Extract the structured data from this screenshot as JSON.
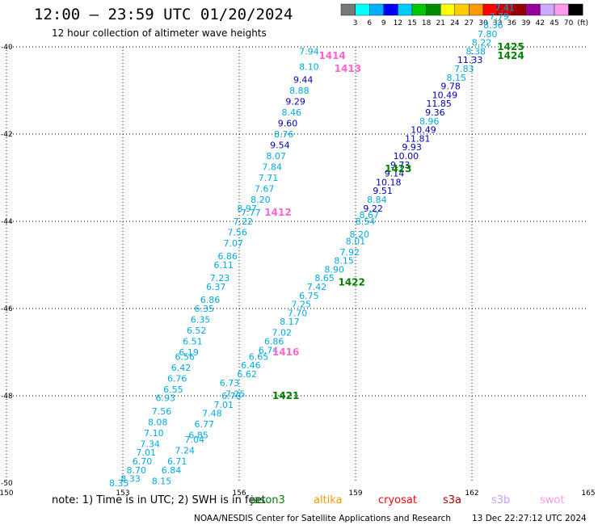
{
  "chart_data": {
    "type": "scatter",
    "title": "12:00 – 23:59 UTC 01/20/2024",
    "subtitle": "12 hour collection of altimeter wave heights",
    "xlim": [
      150,
      165
    ],
    "ylim": [
      -50,
      -40
    ],
    "x_ticks": [
      "150",
      "153",
      "156",
      "159",
      "162",
      "165"
    ],
    "y_ticks": [
      "-40",
      "-42",
      "-44",
      "-46",
      "-48",
      "-50"
    ],
    "grid": true,
    "colorbar": {
      "labels": [
        "3",
        "6",
        "9",
        "12",
        "15",
        "18",
        "21",
        "24",
        "27",
        "30",
        "33",
        "36",
        "39",
        "42",
        "45",
        "70",
        "(ft)"
      ],
      "colors": [
        "#777777",
        "#00ffff",
        "#00b0ff",
        "#0000ff",
        "#00ccff",
        "#00c800",
        "#008c00",
        "#ffff00",
        "#ffcc00",
        "#ff9900",
        "#ff0000",
        "#cc0000",
        "#990000",
        "#990099",
        "#ccaaff",
        "#ff99ee",
        "#000000"
      ]
    },
    "series": [
      {
        "track": "1412",
        "x": 157.0,
        "y": -43.8,
        "color": "#ff66cc"
      },
      {
        "track": "1413",
        "x": 158.8,
        "y": -40.5,
        "color": "#ff66cc"
      },
      {
        "track": "1414",
        "x": 158.4,
        "y": -40.2,
        "color": "#ff66cc"
      },
      {
        "track": "1416",
        "x": 157.2,
        "y": -47.0,
        "color": "#ff66cc"
      },
      {
        "track": "1421",
        "x": 157.2,
        "y": -48.0,
        "color": "#008000"
      },
      {
        "track": "1422",
        "x": 158.9,
        "y": -45.4,
        "color": "#008000"
      },
      {
        "track": "1423",
        "x": 160.1,
        "y": -42.8,
        "color": "#008000"
      },
      {
        "track": "1424",
        "x": 163.0,
        "y": -40.2,
        "color": "#008000"
      },
      {
        "track": "1425",
        "x": 163.0,
        "y": -40.0,
        "color": "#008000"
      }
    ],
    "points": [
      {
        "x": 156.2,
        "y": -43.7,
        "v": "8.97",
        "c": "#00aadd"
      },
      {
        "x": 156.3,
        "y": -43.8,
        "v": "7.77",
        "c": "#00aadd"
      },
      {
        "x": 156.1,
        "y": -44.0,
        "v": "7.22",
        "c": "#00aadd"
      },
      {
        "x": 155.95,
        "y": -44.25,
        "v": "7.56",
        "c": "#00aadd"
      },
      {
        "x": 155.85,
        "y": -44.5,
        "v": "7.07",
        "c": "#00aadd"
      },
      {
        "x": 155.7,
        "y": -44.8,
        "v": "6.86",
        "c": "#00aadd"
      },
      {
        "x": 155.6,
        "y": -45.0,
        "v": "6.11",
        "c": "#00aadd"
      },
      {
        "x": 155.5,
        "y": -45.3,
        "v": "7.23",
        "c": "#00aadd"
      },
      {
        "x": 155.4,
        "y": -45.5,
        "v": "6.37",
        "c": "#00aadd"
      },
      {
        "x": 155.25,
        "y": -45.8,
        "v": "6.86",
        "c": "#00aadd"
      },
      {
        "x": 155.1,
        "y": -46.0,
        "v": "6.35",
        "c": "#00aadd"
      },
      {
        "x": 155.0,
        "y": -46.25,
        "v": "6.35",
        "c": "#00aadd"
      },
      {
        "x": 154.9,
        "y": -46.5,
        "v": "6.52",
        "c": "#00aadd"
      },
      {
        "x": 154.8,
        "y": -46.75,
        "v": "6.51",
        "c": "#00aadd"
      },
      {
        "x": 154.7,
        "y": -47.0,
        "v": "6.19",
        "c": "#00aadd"
      },
      {
        "x": 154.6,
        "y": -47.1,
        "v": "6.56",
        "c": "#00aadd"
      },
      {
        "x": 154.5,
        "y": -47.35,
        "v": "6.42",
        "c": "#00aadd"
      },
      {
        "x": 154.4,
        "y": -47.6,
        "v": "6.76",
        "c": "#00aadd"
      },
      {
        "x": 154.3,
        "y": -47.85,
        "v": "6.55",
        "c": "#00aadd"
      },
      {
        "x": 154.1,
        "y": -48.05,
        "v": "6.93",
        "c": "#00aadd"
      },
      {
        "x": 154.0,
        "y": -48.35,
        "v": "7.56",
        "c": "#00aadd"
      },
      {
        "x": 153.9,
        "y": -48.6,
        "v": "8.08",
        "c": "#00aadd"
      },
      {
        "x": 153.8,
        "y": -48.85,
        "v": "7.10",
        "c": "#00aadd"
      },
      {
        "x": 153.7,
        "y": -49.1,
        "v": "7.34",
        "c": "#00aadd"
      },
      {
        "x": 153.6,
        "y": -49.3,
        "v": "7.01",
        "c": "#00aadd"
      },
      {
        "x": 153.5,
        "y": -49.5,
        "v": "6.70",
        "c": "#00aadd"
      },
      {
        "x": 153.35,
        "y": -49.7,
        "v": "8.70",
        "c": "#00aadd"
      },
      {
        "x": 153.2,
        "y": -49.9,
        "v": "8.33",
        "c": "#00aadd"
      },
      {
        "x": 152.9,
        "y": -50.0,
        "v": "8.35",
        "c": "#00aadd"
      },
      {
        "x": 155.8,
        "y": -48.0,
        "v": "6.73",
        "c": "#00aadd"
      },
      {
        "x": 155.9,
        "y": -47.95,
        "v": "7.25",
        "c": "#00aadd"
      },
      {
        "x": 155.75,
        "y": -47.7,
        "v": "6.73",
        "c": "#00aadd"
      },
      {
        "x": 155.6,
        "y": -48.2,
        "v": "7.01",
        "c": "#00aadd"
      },
      {
        "x": 155.3,
        "y": -48.4,
        "v": "7.48",
        "c": "#00aadd"
      },
      {
        "x": 155.1,
        "y": -48.65,
        "v": "6.77",
        "c": "#00aadd"
      },
      {
        "x": 154.95,
        "y": -48.9,
        "v": "6.85",
        "c": "#00aadd"
      },
      {
        "x": 154.85,
        "y": -49.0,
        "v": "7.04",
        "c": "#00aadd"
      },
      {
        "x": 154.6,
        "y": -49.25,
        "v": "7.24",
        "c": "#00aadd"
      },
      {
        "x": 154.4,
        "y": -49.5,
        "v": "6.71",
        "c": "#00aadd"
      },
      {
        "x": 154.25,
        "y": -49.7,
        "v": "6.84",
        "c": "#00aadd"
      },
      {
        "x": 154.0,
        "y": -49.95,
        "v": "8.15",
        "c": "#00aadd"
      },
      {
        "x": 156.2,
        "y": -47.5,
        "v": "6.62",
        "c": "#00aadd"
      },
      {
        "x": 156.3,
        "y": -47.3,
        "v": "6.46",
        "c": "#00aadd"
      },
      {
        "x": 156.5,
        "y": -47.1,
        "v": "6.65",
        "c": "#00aadd"
      },
      {
        "x": 156.75,
        "y": -46.95,
        "v": "6.74",
        "c": "#00aadd"
      },
      {
        "x": 156.9,
        "y": -46.75,
        "v": "6.86",
        "c": "#00aadd"
      },
      {
        "x": 157.1,
        "y": -46.55,
        "v": "7.02",
        "c": "#00aadd"
      },
      {
        "x": 157.3,
        "y": -46.3,
        "v": "8.17",
        "c": "#00aadd"
      },
      {
        "x": 157.5,
        "y": -46.1,
        "v": "7.70",
        "c": "#00aadd"
      },
      {
        "x": 157.6,
        "y": -45.9,
        "v": "7.25",
        "c": "#00aadd"
      },
      {
        "x": 157.8,
        "y": -45.7,
        "v": "6.75",
        "c": "#00aadd"
      },
      {
        "x": 158.0,
        "y": -45.5,
        "v": "7.42",
        "c": "#00aadd"
      },
      {
        "x": 158.2,
        "y": -45.3,
        "v": "8.65",
        "c": "#00aadd"
      },
      {
        "x": 158.45,
        "y": -45.1,
        "v": "8.90",
        "c": "#00aadd"
      },
      {
        "x": 158.7,
        "y": -44.9,
        "v": "8.15",
        "c": "#00aadd"
      },
      {
        "x": 158.85,
        "y": -44.7,
        "v": "7.92",
        "c": "#00aadd"
      },
      {
        "x": 159.0,
        "y": -44.45,
        "v": "8.01",
        "c": "#00aadd"
      },
      {
        "x": 159.1,
        "y": -44.3,
        "v": "8.20",
        "c": "#00aadd"
      },
      {
        "x": 159.25,
        "y": -44.0,
        "v": "8.54",
        "c": "#00aadd"
      },
      {
        "x": 159.35,
        "y": -43.85,
        "v": "8.67",
        "c": "#00aadd"
      },
      {
        "x": 159.45,
        "y": -43.7,
        "v": "9.22",
        "c": "#0000aa"
      },
      {
        "x": 159.55,
        "y": -43.5,
        "v": "8.84",
        "c": "#00aadd"
      },
      {
        "x": 159.7,
        "y": -43.3,
        "v": "9.51",
        "c": "#0000aa"
      },
      {
        "x": 159.85,
        "y": -43.1,
        "v": "10.18",
        "c": "#0000aa"
      },
      {
        "x": 160.0,
        "y": -42.9,
        "v": "9.14",
        "c": "#0000aa"
      },
      {
        "x": 160.15,
        "y": -42.7,
        "v": "9.73",
        "c": "#0000aa"
      },
      {
        "x": 160.3,
        "y": -42.5,
        "v": "10.00",
        "c": "#0000aa"
      },
      {
        "x": 160.45,
        "y": -42.3,
        "v": "9.93",
        "c": "#0000aa"
      },
      {
        "x": 160.6,
        "y": -42.1,
        "v": "11.81",
        "c": "#0000aa"
      },
      {
        "x": 160.75,
        "y": -41.9,
        "v": "10.49",
        "c": "#0000aa"
      },
      {
        "x": 160.9,
        "y": -41.7,
        "v": "8.96",
        "c": "#00aadd"
      },
      {
        "x": 161.05,
        "y": -41.5,
        "v": "9.36",
        "c": "#0000aa"
      },
      {
        "x": 161.15,
        "y": -41.3,
        "v": "11.85",
        "c": "#0000aa"
      },
      {
        "x": 161.3,
        "y": -41.1,
        "v": "10.49",
        "c": "#0000aa"
      },
      {
        "x": 161.45,
        "y": -40.9,
        "v": "9.78",
        "c": "#0000aa"
      },
      {
        "x": 161.6,
        "y": -40.7,
        "v": "8.15",
        "c": "#00aadd"
      },
      {
        "x": 161.8,
        "y": -40.5,
        "v": "7.83",
        "c": "#00aadd"
      },
      {
        "x": 161.95,
        "y": -40.3,
        "v": "11.33",
        "c": "#0000aa"
      },
      {
        "x": 162.1,
        "y": -40.1,
        "v": "8.38",
        "c": "#00aadd"
      },
      {
        "x": 162.25,
        "y": -39.9,
        "v": "8.22",
        "c": "#00aadd"
      },
      {
        "x": 162.4,
        "y": -39.7,
        "v": "7.80",
        "c": "#00aadd"
      },
      {
        "x": 162.55,
        "y": -39.5,
        "v": "8.36",
        "c": "#00aadd"
      },
      {
        "x": 162.7,
        "y": -39.3,
        "v": "7.79",
        "c": "#00aadd"
      },
      {
        "x": 162.85,
        "y": -39.1,
        "v": "7.41",
        "c": "#00aadd"
      },
      {
        "x": 157.8,
        "y": -40.1,
        "v": "7.94",
        "c": "#00aadd"
      },
      {
        "x": 157.8,
        "y": -40.45,
        "v": "8.10",
        "c": "#00aadd"
      },
      {
        "x": 157.65,
        "y": -40.75,
        "v": "9.44",
        "c": "#0000aa"
      },
      {
        "x": 157.55,
        "y": -41.0,
        "v": "8.88",
        "c": "#00aadd"
      },
      {
        "x": 157.45,
        "y": -41.25,
        "v": "9.29",
        "c": "#0000aa"
      },
      {
        "x": 157.35,
        "y": -41.5,
        "v": "8.46",
        "c": "#00aadd"
      },
      {
        "x": 157.25,
        "y": -41.75,
        "v": "9.60",
        "c": "#0000aa"
      },
      {
        "x": 157.15,
        "y": -42.0,
        "v": "8.76",
        "c": "#00aadd"
      },
      {
        "x": 157.05,
        "y": -42.25,
        "v": "9.54",
        "c": "#0000aa"
      },
      {
        "x": 156.95,
        "y": -42.5,
        "v": "8.07",
        "c": "#00aadd"
      },
      {
        "x": 156.85,
        "y": -42.75,
        "v": "7.84",
        "c": "#00aadd"
      },
      {
        "x": 156.75,
        "y": -43.0,
        "v": "7.71",
        "c": "#00aadd"
      },
      {
        "x": 156.65,
        "y": -43.25,
        "v": "7.67",
        "c": "#00aadd"
      },
      {
        "x": 156.55,
        "y": -43.5,
        "v": "8.20",
        "c": "#00aadd"
      }
    ]
  },
  "footer": {
    "note": "note:  1) Time is in UTC; 2) SWH is in feet",
    "missions": [
      {
        "label": "jason3",
        "color": "#008000"
      },
      {
        "label": "altika",
        "color": "#ff9900"
      },
      {
        "label": "cryosat",
        "color": "#ff0000"
      },
      {
        "label": "s3a",
        "color": "#aa0000"
      },
      {
        "label": "s3b",
        "color": "#c8a0ff"
      },
      {
        "label": "swot",
        "color": "#ff99ee"
      }
    ],
    "credit": "NOAA/NESDIS Center for Satellite Applications and Research",
    "timestamp": "13 Dec 22:27:12 UTC 2024"
  }
}
